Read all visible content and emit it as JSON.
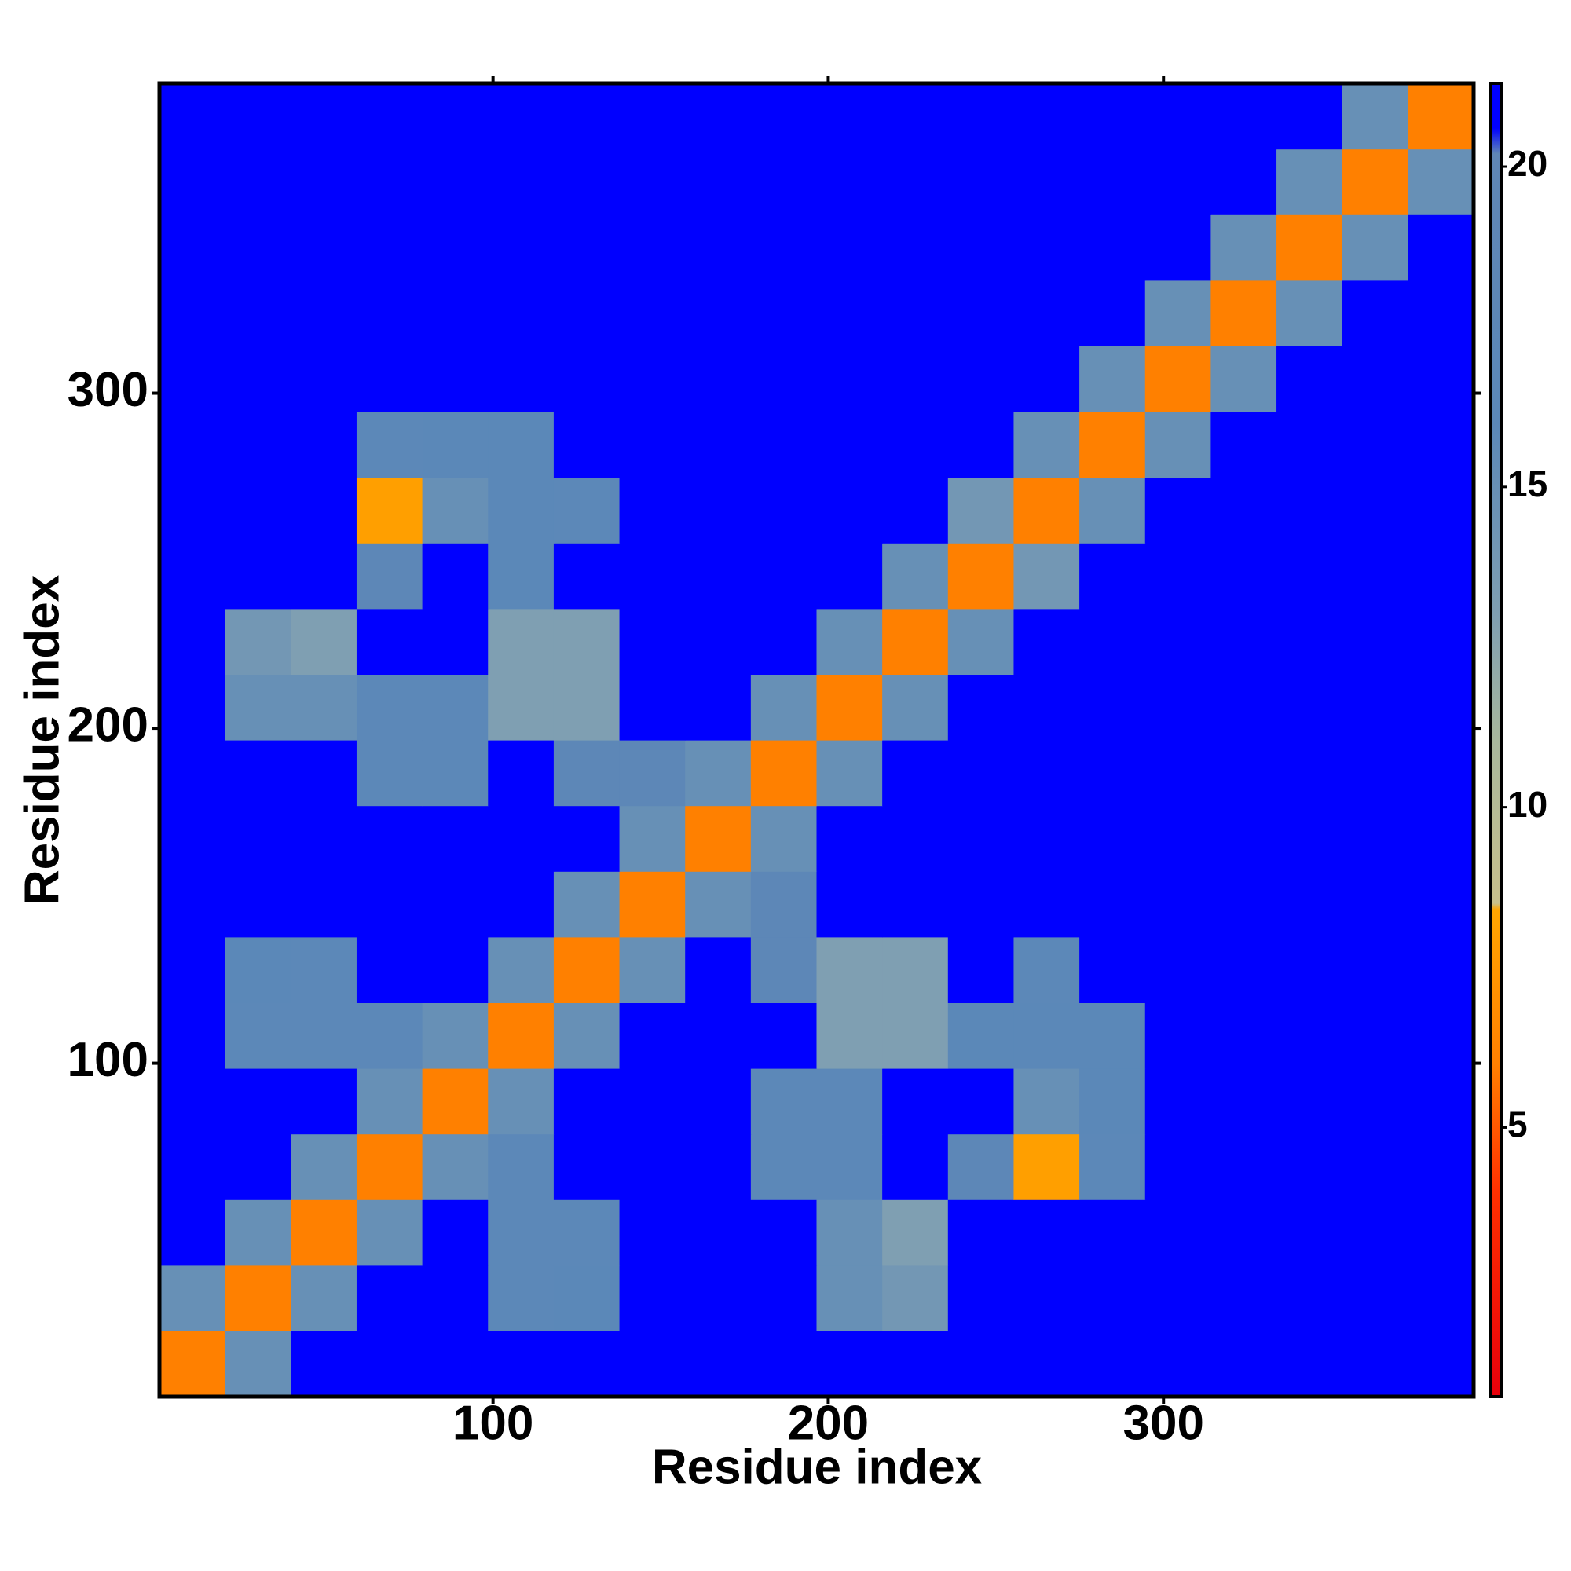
{
  "chart_data": {
    "type": "heatmap",
    "x_label": "Residue index",
    "y_label": "Residue index",
    "xlim": [
      0.5,
      392.5
    ],
    "ylim": [
      0.5,
      392.5
    ],
    "xticks": [
      100,
      200,
      300
    ],
    "yticks": [
      100,
      200,
      300
    ],
    "x_bins": [
      0.5,
      20.1,
      39.7,
      59.3,
      78.9,
      98.5,
      118.1,
      137.7,
      157.3,
      176.9,
      196.5,
      216.1,
      235.7,
      255.3,
      274.9,
      294.5,
      314.1,
      333.7,
      353.3,
      372.9,
      392.5
    ],
    "y_bins": [
      0.5,
      20.1,
      39.7,
      59.3,
      78.9,
      98.5,
      118.1,
      137.7,
      157.3,
      176.9,
      196.5,
      216.1,
      235.7,
      255.3,
      274.9,
      294.5,
      314.1,
      333.7,
      353.3,
      372.9,
      392.5
    ],
    "z": [
      [
        6,
        15,
        21,
        21,
        21,
        21,
        21,
        21,
        21,
        21,
        21,
        21,
        21,
        21,
        21,
        21,
        21,
        21,
        21,
        21
      ],
      [
        15,
        6,
        15,
        21,
        21,
        17,
        16,
        21,
        21,
        21,
        15,
        14,
        21,
        21,
        21,
        21,
        21,
        21,
        21,
        21
      ],
      [
        21,
        15,
        6,
        15,
        21,
        17,
        17,
        21,
        21,
        21,
        15,
        13,
        21,
        21,
        21,
        21,
        21,
        21,
        21,
        21
      ],
      [
        21,
        21,
        15,
        6,
        15,
        17,
        21,
        21,
        21,
        17,
        17,
        21,
        18,
        8,
        17,
        21,
        21,
        21,
        21,
        21
      ],
      [
        21,
        21,
        21,
        15,
        6,
        15,
        21,
        21,
        21,
        17,
        17,
        21,
        21,
        15,
        16,
        21,
        21,
        21,
        21,
        21
      ],
      [
        21,
        17,
        17,
        17,
        15,
        6,
        15,
        21,
        21,
        21,
        13,
        13,
        16,
        16,
        16,
        21,
        21,
        21,
        21,
        21
      ],
      [
        21,
        16,
        17,
        21,
        21,
        15,
        6,
        15,
        21,
        18,
        13,
        13,
        21,
        17,
        21,
        21,
        21,
        21,
        21,
        21
      ],
      [
        21,
        21,
        21,
        21,
        21,
        21,
        15,
        6,
        15,
        18,
        21,
        21,
        21,
        21,
        21,
        21,
        21,
        21,
        21,
        21
      ],
      [
        21,
        21,
        21,
        21,
        21,
        21,
        21,
        15,
        6,
        15,
        21,
        21,
        21,
        21,
        21,
        21,
        21,
        21,
        21,
        21
      ],
      [
        21,
        21,
        21,
        17,
        17,
        21,
        18,
        18,
        15,
        6,
        15,
        21,
        21,
        21,
        21,
        21,
        21,
        21,
        21,
        21
      ],
      [
        21,
        15,
        15,
        17,
        17,
        13,
        13,
        21,
        21,
        15,
        6,
        15,
        21,
        21,
        21,
        21,
        21,
        21,
        21,
        21
      ],
      [
        21,
        14,
        13,
        21,
        21,
        13,
        13,
        21,
        21,
        21,
        15,
        6,
        15,
        21,
        21,
        21,
        21,
        21,
        21,
        21
      ],
      [
        21,
        21,
        21,
        18,
        21,
        16,
        21,
        21,
        21,
        21,
        21,
        15,
        6,
        14,
        21,
        21,
        21,
        21,
        21,
        21
      ],
      [
        21,
        21,
        21,
        8,
        15,
        16,
        17,
        21,
        21,
        21,
        21,
        21,
        14,
        6,
        15,
        21,
        21,
        21,
        21,
        21
      ],
      [
        21,
        21,
        21,
        17,
        16,
        16,
        21,
        21,
        21,
        21,
        21,
        21,
        21,
        15,
        6,
        15,
        21,
        21,
        21,
        21
      ],
      [
        21,
        21,
        21,
        21,
        21,
        21,
        21,
        21,
        21,
        21,
        21,
        21,
        21,
        21,
        15,
        6,
        15,
        21,
        21,
        21
      ],
      [
        21,
        21,
        21,
        21,
        21,
        21,
        21,
        21,
        21,
        21,
        21,
        21,
        21,
        21,
        21,
        15,
        6,
        15,
        21,
        21
      ],
      [
        21,
        21,
        21,
        21,
        21,
        21,
        21,
        21,
        21,
        21,
        21,
        21,
        21,
        21,
        21,
        21,
        15,
        6,
        15,
        21
      ],
      [
        21,
        21,
        21,
        21,
        21,
        21,
        21,
        21,
        21,
        21,
        21,
        21,
        21,
        21,
        21,
        21,
        21,
        15,
        6,
        15
      ],
      [
        21,
        21,
        21,
        21,
        21,
        21,
        21,
        21,
        21,
        21,
        21,
        21,
        21,
        21,
        21,
        21,
        21,
        21,
        15,
        6
      ]
    ],
    "colorscale": [
      [
        0.8,
        "#e8000b"
      ],
      [
        4,
        "#ff3000"
      ],
      [
        6,
        "#ff8000"
      ],
      [
        8.4,
        "#ffa500"
      ],
      [
        8.5,
        "#c8c08c"
      ],
      [
        11,
        "#a9b89c"
      ],
      [
        13,
        "#7f9fb2"
      ],
      [
        16,
        "#5b88b8"
      ],
      [
        20.2,
        "#5f86b6"
      ],
      [
        20.6,
        "#0000ff"
      ],
      [
        21.3,
        "#0000ff"
      ]
    ],
    "colorbar_lim": [
      0.8,
      21.3
    ],
    "colorbar_ticks": [
      5,
      10,
      15,
      20
    ]
  }
}
